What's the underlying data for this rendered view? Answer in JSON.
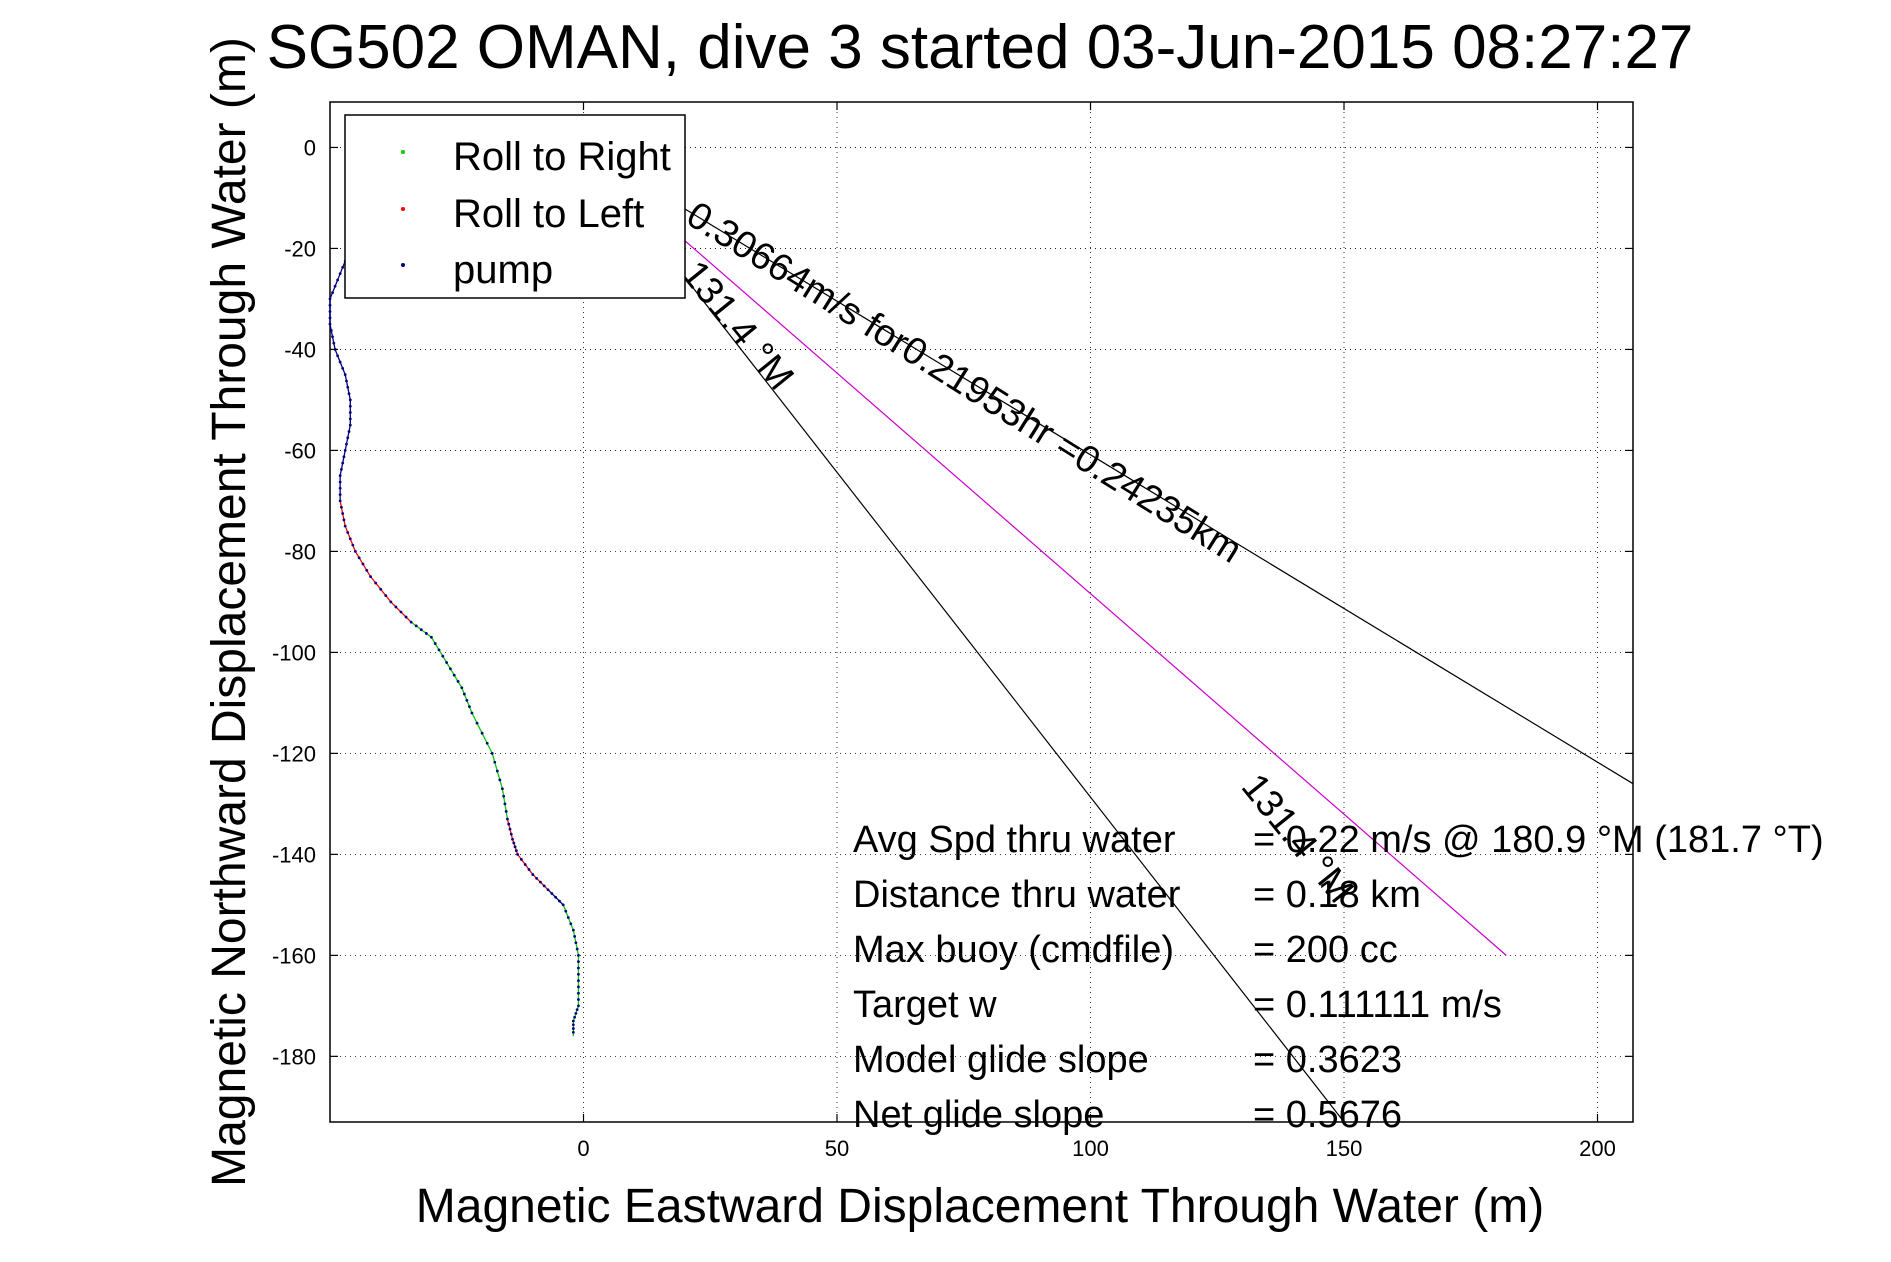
{
  "chart_data": {
    "type": "line",
    "title": "SG502 OMAN, dive 3 started 03-Jun-2015 08:27:27",
    "xlabel": "Magnetic Eastward Displacement Through Water (m)",
    "ylabel": "Magnetic Northward Displacement Through Water (m)",
    "xlim": [
      -50,
      207
    ],
    "ylim": [
      -193,
      9
    ],
    "xticks": [
      0,
      50,
      100,
      150,
      200
    ],
    "yticks": [
      0,
      -20,
      -40,
      -60,
      -80,
      -100,
      -120,
      -140,
      -160,
      -180
    ],
    "grid": true,
    "legend": {
      "position": "top-left",
      "entries": [
        {
          "name": "Roll to Right",
          "color": "#00cc00"
        },
        {
          "name": "Roll to Left",
          "color": "#ff0000"
        },
        {
          "name": "pump",
          "color": "#000080"
        }
      ]
    },
    "track": {
      "color_roll_right": "#00cc00",
      "color_roll_left": "#ff0000",
      "color_pump": "#000080",
      "x": [
        -46,
        -48,
        -50,
        -50,
        -49,
        -47,
        -46,
        -46,
        -47,
        -48,
        -48,
        -47,
        -45,
        -42,
        -38,
        -34,
        -30,
        -27,
        -24,
        -22,
        -18,
        -16,
        -15,
        -14,
        -13,
        -10,
        -7,
        -4,
        -2,
        -1,
        -1,
        -1,
        -2,
        -2
      ],
      "y": [
        -20,
        -25,
        -30,
        -35,
        -40,
        -45,
        -50,
        -55,
        -60,
        -65,
        -70,
        -75,
        -80,
        -85,
        -90,
        -94,
        -97,
        -102,
        -107,
        -112,
        -120,
        -127,
        -133,
        -137,
        -140,
        -144,
        -147,
        -150,
        -155,
        -160,
        -165,
        -170,
        -173,
        -176
      ],
      "roll": [
        "pump",
        "pump",
        "pump",
        "pump",
        "pump",
        "pump",
        "pump",
        "pump",
        "pump",
        "pump",
        "left",
        "left",
        "left",
        "left",
        "left",
        "right",
        "right",
        "right",
        "right",
        "right",
        "right",
        "right",
        "left",
        "left",
        "left",
        "left",
        "pump",
        "right",
        "right",
        "right",
        "right",
        "right",
        "right",
        "right"
      ]
    },
    "lines": [
      {
        "name": "current",
        "color": "#cc00cc",
        "x": [
          0,
          182
        ],
        "y": [
          -1,
          -160
        ]
      },
      {
        "name": "heading-ref-1",
        "color": "#000000",
        "x": [
          0,
          207
        ],
        "y": [
          0,
          -126
        ]
      },
      {
        "name": "heading-ref-2",
        "color": "#000000",
        "x": [
          0,
          150
        ],
        "y": [
          0,
          -193
        ]
      }
    ],
    "annotations": {
      "current_label": "0.30664m/s for0.21953hr =0.24235km",
      "heading_label_1": "131.4 °M",
      "heading_label_2": "131.4 °M"
    },
    "stats": [
      {
        "label": "Avg Spd thru water",
        "value": "= 0.22 m/s @ 180.9 °M (181.7 °T)"
      },
      {
        "label": "Distance thru water",
        "value": "=  0.18 km"
      },
      {
        "label": "Max buoy (cmdfile)",
        "value": "= 200 cc"
      },
      {
        "label": "Target w",
        "value": "= 0.111111 m/s"
      },
      {
        "label": "Model glide slope",
        "value": "= 0.3623"
      },
      {
        "label": "Net glide slope",
        "value": "= 0.5676"
      }
    ]
  }
}
